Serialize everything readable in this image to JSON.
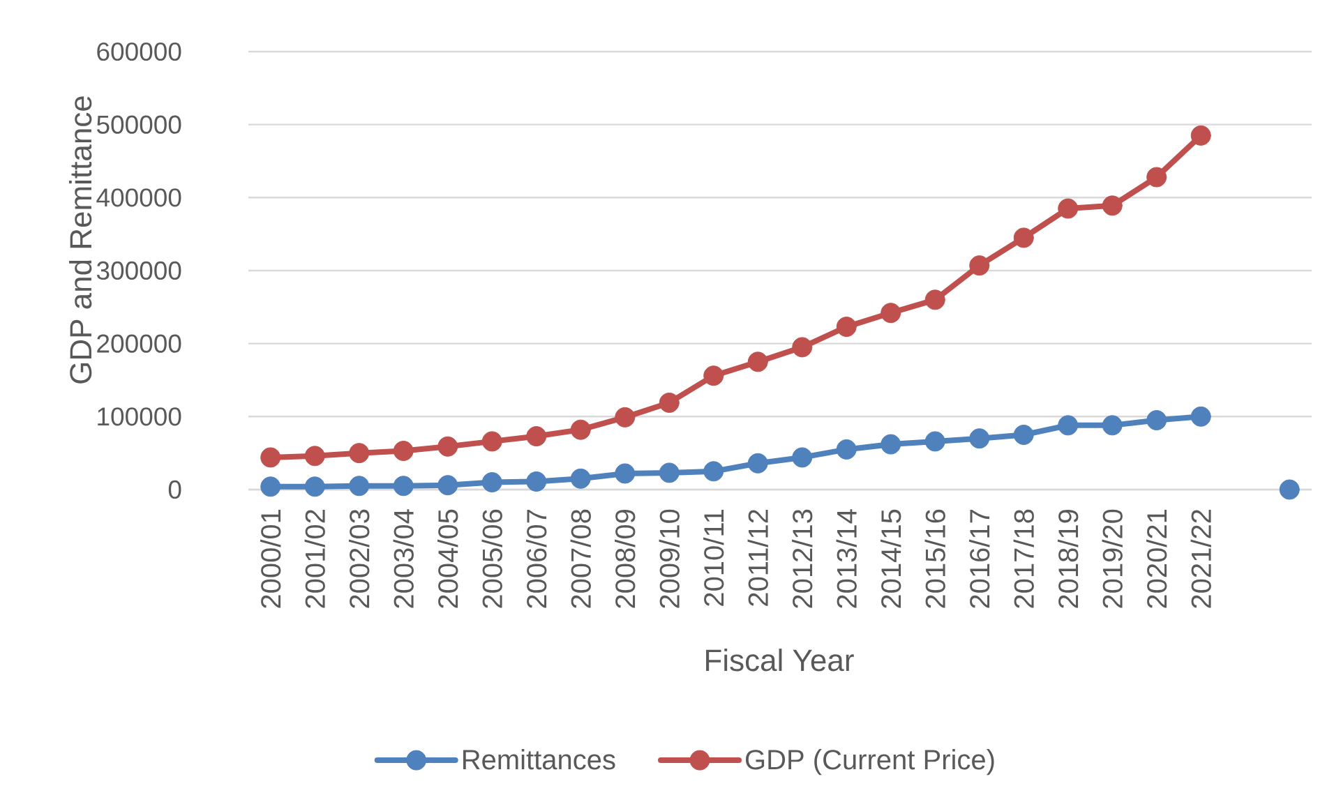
{
  "chart_data": {
    "type": "line",
    "xlabel": "Fiscal Year",
    "ylabel": "GDP and Remittance",
    "categories": [
      "2000/01",
      "2001/02",
      "2002/03",
      "2003/04",
      "2004/05",
      "2005/06",
      "2006/07",
      "2007/08",
      "2008/09",
      "2009/10",
      "2010/11",
      "2011/12",
      "2012/13",
      "2013/14",
      "2014/15",
      "2015/16",
      "2016/17",
      "2017/18",
      "2018/19",
      "2019/20",
      "2020/21",
      "2021/22",
      null,
      null
    ],
    "series": [
      {
        "name": "Remittances",
        "color": "#4f81bd",
        "values": [
          4000,
          4000,
          5000,
          5000,
          6000,
          10000,
          11000,
          15000,
          22000,
          23000,
          25000,
          36000,
          44000,
          55000,
          62000,
          66000,
          70000,
          75000,
          88000,
          88000,
          95000,
          100000,
          null,
          0
        ]
      },
      {
        "name": "GDP (Current Price)",
        "color": "#c0504d",
        "values": [
          44000,
          46000,
          50000,
          53000,
          59000,
          66000,
          73000,
          82000,
          99000,
          119000,
          156000,
          175000,
          195000,
          223000,
          242000,
          260000,
          307000,
          345000,
          385000,
          389000,
          428000,
          485000,
          null,
          null
        ]
      }
    ],
    "ylim": [
      0,
      600000
    ],
    "yticks": [
      0,
      100000,
      200000,
      300000,
      400000,
      500000,
      600000
    ],
    "grid": "y",
    "legend": "bottom",
    "marker": "circle",
    "line_style": "solid"
  }
}
